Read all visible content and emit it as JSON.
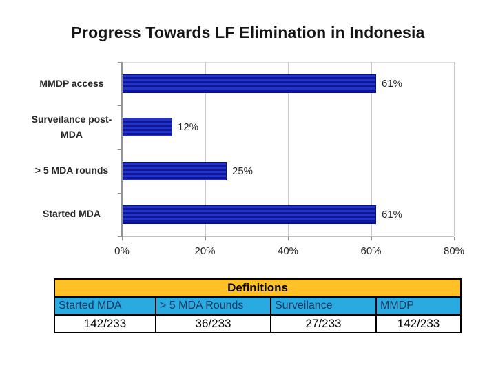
{
  "slide": {
    "title": "Progress Towards LF Elimination in Indonesia"
  },
  "chart_data": {
    "type": "bar",
    "orientation": "horizontal",
    "title": "Progress Towards LF Elimination in Indonesia",
    "categories": [
      "MMDP access",
      "Surveilance post-MDA",
      "> 5 MDA rounds",
      "Started MDA"
    ],
    "values": [
      61,
      12,
      25,
      61
    ],
    "data_labels": [
      "61%",
      "12%",
      "25%",
      "61%"
    ],
    "xlim": [
      0,
      80
    ],
    "x_tick_values": [
      0,
      20,
      40,
      60,
      80
    ],
    "x_tick_labels": [
      "0%",
      "20%",
      "40%",
      "60%",
      "80%"
    ],
    "grid": true,
    "legend": false,
    "bar_color": "#2135cd",
    "bar_stripe_color": "#111696",
    "gridline_color": "#c9c9c9"
  },
  "table": {
    "title": "Definitions",
    "columns": [
      "Started MDA",
      "> 5 MDA Rounds",
      "Surveilance",
      "MMDP"
    ],
    "values": [
      "142/233",
      "36/233",
      "27/233",
      "142/233"
    ],
    "title_bg": "#FFC125",
    "header_bg": "#29ABE2",
    "header_text_color": "#17375E"
  }
}
